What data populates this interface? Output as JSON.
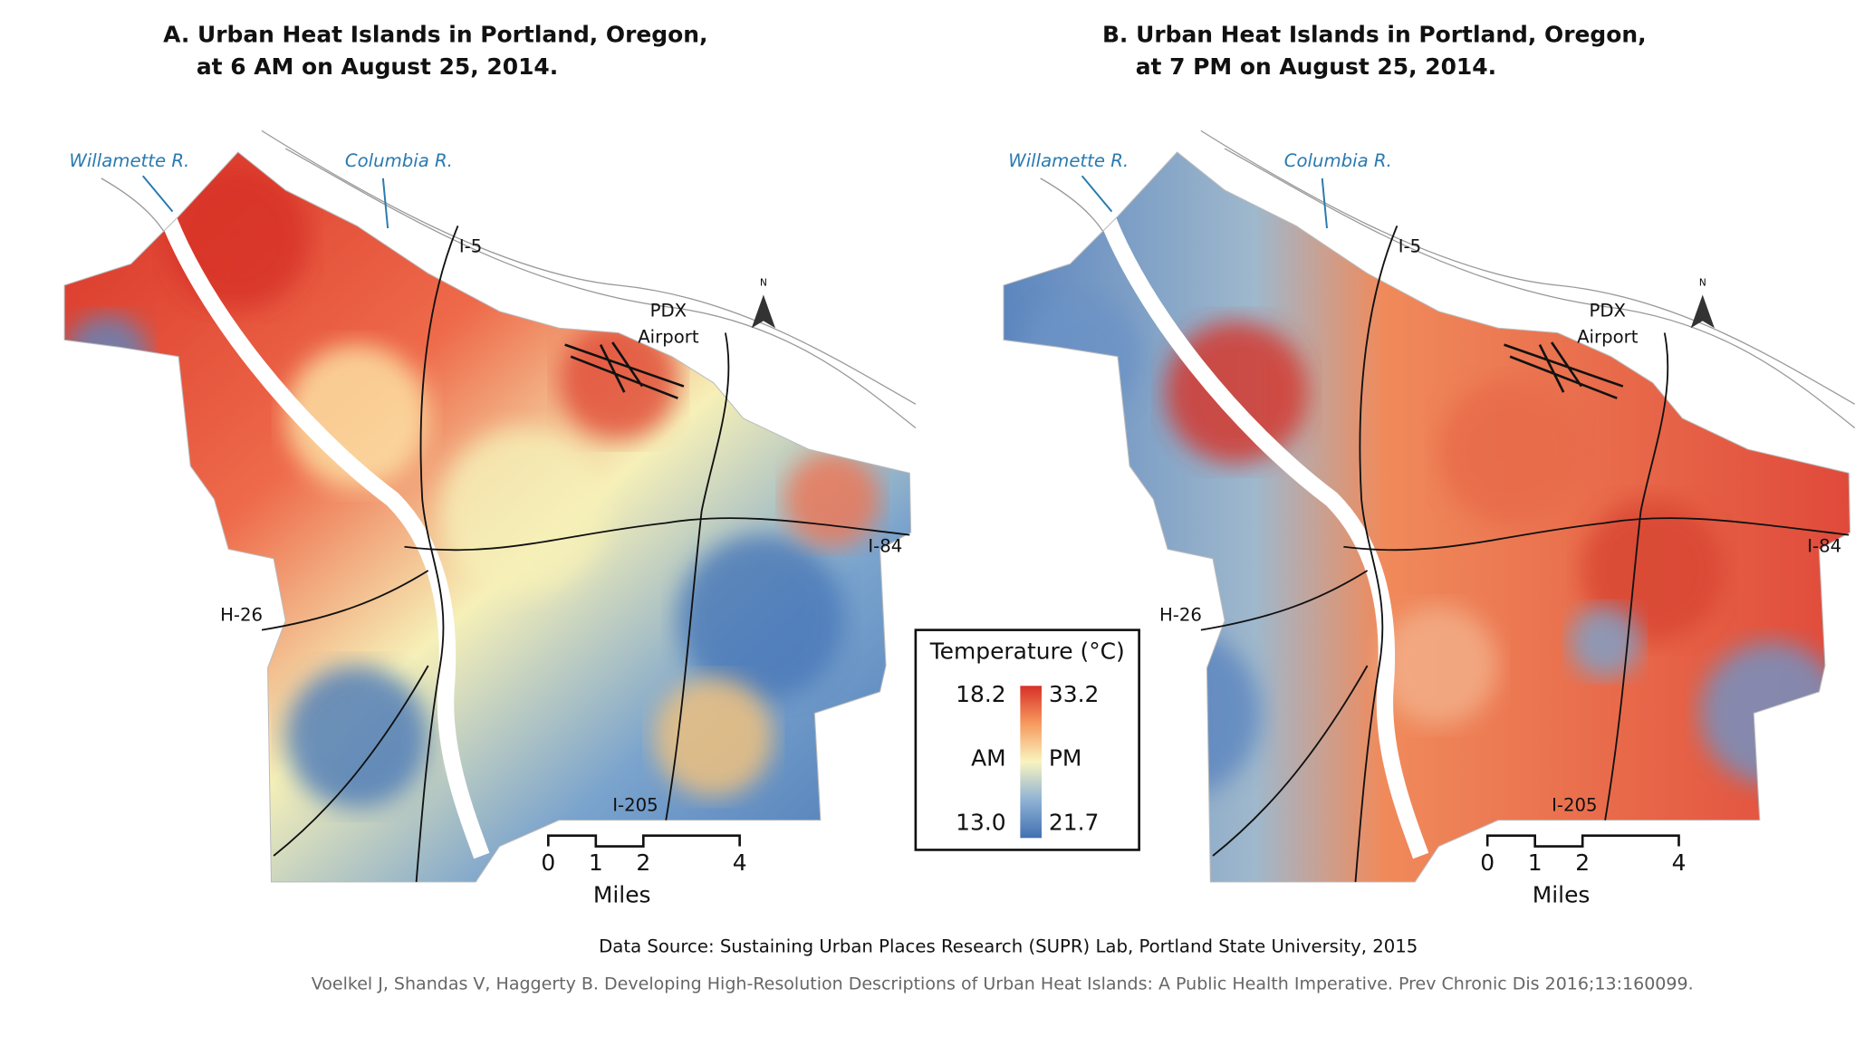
{
  "panels": [
    {
      "title_line1": "A. Urban Heat Islands in Portland, Oregon,",
      "title_line2": "at 6 AM on August 25, 2014.",
      "labels": {
        "willamette": "Willamette R.",
        "columbia": "Columbia R.",
        "i5": "I-5",
        "pdx": "PDX",
        "airport": "Airport",
        "i84": "I-84",
        "h26": "H-26",
        "i205": "I-205"
      },
      "north": "N",
      "scale": {
        "ticks": [
          "0",
          "1",
          "2",
          "4"
        ],
        "unit": "Miles"
      }
    },
    {
      "title_line1": "B. Urban Heat Islands in Portland, Oregon,",
      "title_line2": "at 7 PM on August 25, 2014.",
      "labels": {
        "willamette": "Willamette R.",
        "columbia": "Columbia R.",
        "i5": "I-5",
        "pdx": "PDX",
        "airport": "Airport",
        "i84": "I-84",
        "h26": "H-26",
        "i205": "I-205"
      },
      "north": "N",
      "scale": {
        "ticks": [
          "0",
          "1",
          "2",
          "4"
        ],
        "unit": "Miles"
      }
    }
  ],
  "legend": {
    "title": "Temperature (°C)",
    "am_label": "AM",
    "pm_label": "PM",
    "am_high": "18.2",
    "am_low": "13.0",
    "pm_high": "33.2",
    "pm_low": "21.7"
  },
  "source": "Data Source: Sustaining Urban Places Research (SUPR) Lab, Portland State University, 2015",
  "citation": "Voelkel J, Shandas V, Haggerty B. Developing High-Resolution Descriptions of Urban Heat Islands: A Public Health Imperative. Prev Chronic Dis 2016;13:160099."
}
